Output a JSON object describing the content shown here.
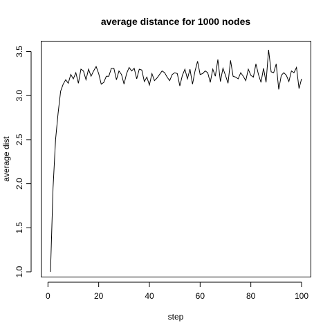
{
  "chart_data": {
    "type": "line",
    "title": "average distance for 1000 nodes",
    "xlabel": "step",
    "ylabel": "average dist",
    "xlim": [
      1,
      100
    ],
    "ylim": [
      1.0,
      3.52
    ],
    "x_ticks": [
      0,
      20,
      40,
      60,
      80,
      100
    ],
    "x_tick_labels": [
      "0",
      "20",
      "40",
      "60",
      "80",
      "100"
    ],
    "y_ticks": [
      1.0,
      1.5,
      2.0,
      2.5,
      3.0,
      3.5
    ],
    "y_tick_labels": [
      "1.0",
      "1.5",
      "2.0",
      "2.5",
      "3.0",
      "3.5"
    ],
    "grid": false,
    "legend": "none",
    "colors": {
      "line": "#000000",
      "background": "#ffffff"
    },
    "series": [
      {
        "x": [
          1,
          2,
          3,
          4,
          5,
          6,
          7,
          8,
          9,
          10,
          11,
          12,
          13,
          14,
          15,
          16,
          17,
          18,
          19,
          20,
          21,
          22,
          23,
          24,
          25,
          26,
          27,
          28,
          29,
          30,
          31,
          32,
          33,
          34,
          35,
          36,
          37,
          38,
          39,
          40,
          41,
          42,
          43,
          44,
          45,
          46,
          47,
          48,
          49,
          50,
          51,
          52,
          53,
          54,
          55,
          56,
          57,
          58,
          59,
          60,
          61,
          62,
          63,
          64,
          65,
          66,
          67,
          68,
          69,
          70,
          71,
          72,
          73,
          74,
          75,
          76,
          77,
          78,
          79,
          80,
          81,
          82,
          83,
          84,
          85,
          86,
          87,
          88,
          89,
          90,
          91,
          92,
          93,
          94,
          95,
          96,
          97,
          98,
          99,
          100
        ],
        "values": [
          1.0,
          1.95,
          2.5,
          2.8,
          3.05,
          3.13,
          3.18,
          3.14,
          3.24,
          3.19,
          3.26,
          3.14,
          3.3,
          3.28,
          3.18,
          3.3,
          3.22,
          3.28,
          3.33,
          3.25,
          3.13,
          3.15,
          3.22,
          3.22,
          3.31,
          3.31,
          3.18,
          3.28,
          3.24,
          3.13,
          3.25,
          3.32,
          3.28,
          3.31,
          3.19,
          3.3,
          3.29,
          3.16,
          3.21,
          3.12,
          3.25,
          3.17,
          3.2,
          3.24,
          3.28,
          3.26,
          3.21,
          3.17,
          3.24,
          3.26,
          3.25,
          3.11,
          3.23,
          3.3,
          3.19,
          3.3,
          3.13,
          3.28,
          3.39,
          3.24,
          3.25,
          3.28,
          3.26,
          3.15,
          3.3,
          3.22,
          3.41,
          3.16,
          3.31,
          3.23,
          3.14,
          3.4,
          3.22,
          3.21,
          3.19,
          3.26,
          3.22,
          3.17,
          3.3,
          3.23,
          3.21,
          3.36,
          3.24,
          3.15,
          3.31,
          3.15,
          3.52,
          3.27,
          3.26,
          3.36,
          3.07,
          3.23,
          3.26,
          3.23,
          3.16,
          3.28,
          3.26,
          3.32,
          3.08,
          3.19
        ]
      }
    ]
  }
}
